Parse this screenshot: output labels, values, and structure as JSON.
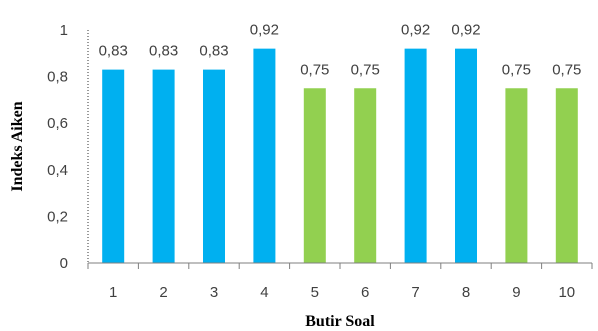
{
  "chart_data": {
    "type": "bar",
    "title": "",
    "xlabel": "Butir Soal",
    "ylabel": "Indeks Aiken",
    "categories": [
      "1",
      "2",
      "3",
      "4",
      "5",
      "6",
      "7",
      "8",
      "9",
      "10"
    ],
    "values": [
      0.83,
      0.83,
      0.83,
      0.92,
      0.75,
      0.75,
      0.92,
      0.92,
      0.75,
      0.75
    ],
    "value_labels": [
      "0,83",
      "0,83",
      "0,83",
      "0,92",
      "0,75",
      "0,75",
      "0,92",
      "0,92",
      "0,75",
      "0,75"
    ],
    "bar_colors": [
      "#00B0F0",
      "#00B0F0",
      "#00B0F0",
      "#00B0F0",
      "#92D050",
      "#92D050",
      "#00B0F0",
      "#00B0F0",
      "#92D050",
      "#92D050"
    ],
    "ylim": [
      0,
      1
    ],
    "yticks": [
      "0",
      "0,2",
      "0,4",
      "0,6",
      "0,8",
      "1"
    ],
    "grid": false,
    "legend": "none"
  }
}
